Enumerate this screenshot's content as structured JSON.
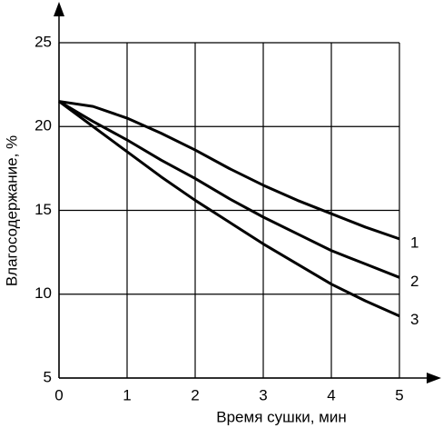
{
  "chart_data": {
    "type": "line",
    "x_label": "Время сушки, мин",
    "y_label": "Влагосодержание, %",
    "x": [
      0,
      0.5,
      1,
      1.5,
      2,
      2.5,
      3,
      3.5,
      4,
      4.5,
      5
    ],
    "series": [
      {
        "name": "1",
        "color": "#000000",
        "values": [
          21.5,
          21.2,
          20.5,
          19.6,
          18.6,
          17.5,
          16.5,
          15.6,
          14.8,
          14.0,
          13.3
        ]
      },
      {
        "name": "2",
        "color": "#000000",
        "values": [
          21.5,
          20.3,
          19.2,
          18.0,
          16.9,
          15.7,
          14.6,
          13.6,
          12.6,
          11.8,
          11.0
        ]
      },
      {
        "name": "3",
        "color": "#000000",
        "values": [
          21.5,
          20.0,
          18.5,
          17.0,
          15.6,
          14.3,
          13.0,
          11.8,
          10.6,
          9.6,
          8.7
        ]
      }
    ],
    "xlim": [
      0,
      5
    ],
    "ylim": [
      5,
      25
    ],
    "xticks": [
      0,
      1,
      2,
      3,
      4,
      5
    ],
    "yticks": [
      5,
      10,
      15,
      20,
      25
    ],
    "grid": true
  }
}
